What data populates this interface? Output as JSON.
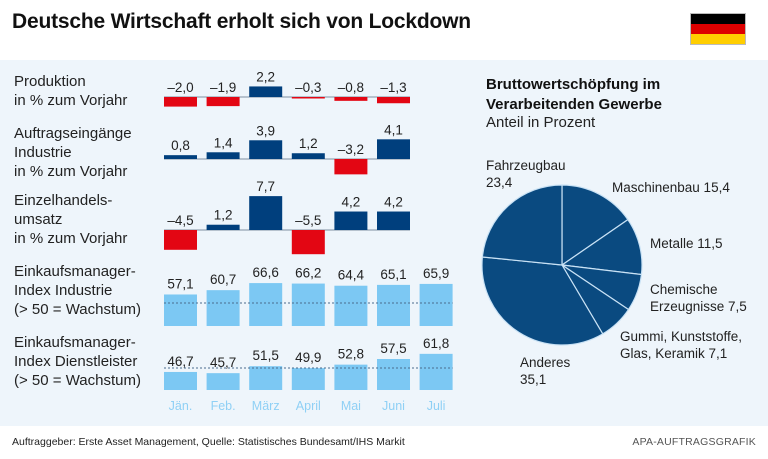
{
  "header": {
    "title": "Deutsche Wirtschaft erholt sich von Lockdown",
    "flag": {
      "name": "germany-flag",
      "colors": [
        "#000000",
        "#dd0000",
        "#ffce00"
      ]
    }
  },
  "colors": {
    "positive": "#003f7d",
    "negative": "#e30613",
    "pmi": "#7cc8f3",
    "month_label": "#8fd0f5",
    "panel_bg": "#eef5fb"
  },
  "rows": [
    {
      "label": "Produktion\nin % zum Vorjahr"
    },
    {
      "label": "Auftragseingänge\nIndustrie\nin % zum Vorjahr"
    },
    {
      "label": "Einzelhandels-\numsatz\nin % zum Vorjahr"
    },
    {
      "label": "Einkaufsmanager-\nIndex Industrie\n(> 50 = Wachstum)"
    },
    {
      "label": "Einkaufsmanager-\nIndex Dienstleister\n(> 50 = Wachstum)"
    }
  ],
  "chart_data": [
    {
      "type": "bar",
      "title": "Produktion in % zum Vorjahr",
      "categories": [
        "Jän.",
        "Feb.",
        "März",
        "April",
        "Mai",
        "Juni"
      ],
      "values": [
        -2.0,
        -1.9,
        2.2,
        -0.3,
        -0.8,
        -1.3
      ],
      "labels": [
        "–2,0",
        "–1,9",
        "2,2",
        "–0,3",
        "–0,8",
        "–1,3"
      ]
    },
    {
      "type": "bar",
      "title": "Auftragseingänge Industrie in % zum Vorjahr",
      "categories": [
        "Jän.",
        "Feb.",
        "März",
        "April",
        "Mai",
        "Juni"
      ],
      "values": [
        0.8,
        1.4,
        3.9,
        1.2,
        -3.2,
        4.1
      ],
      "labels": [
        "0,8",
        "1,4",
        "3,9",
        "1,2",
        "–3,2",
        "4,1"
      ]
    },
    {
      "type": "bar",
      "title": "Einzelhandelsumsatz in % zum Vorjahr",
      "categories": [
        "Jän.",
        "Feb.",
        "März",
        "April",
        "Mai",
        "Juni"
      ],
      "values": [
        -4.5,
        1.2,
        7.7,
        -5.5,
        4.2,
        4.2
      ],
      "labels": [
        "–4,5",
        "1,2",
        "7,7",
        "–5,5",
        "4,2",
        "4,2"
      ]
    },
    {
      "type": "bar",
      "title": "Einkaufsmanager-Index Industrie (> 50 = Wachstum)",
      "categories": [
        "Jän.",
        "Feb.",
        "März",
        "April",
        "Mai",
        "Juni",
        "Juli"
      ],
      "values": [
        57.1,
        60.7,
        66.6,
        66.2,
        64.4,
        65.1,
        65.9
      ],
      "labels": [
        "57,1",
        "60,7",
        "66,6",
        "66,2",
        "64,4",
        "65,1",
        "65,9"
      ],
      "reference_line": 50
    },
    {
      "type": "bar",
      "title": "Einkaufsmanager-Index Dienstleister (> 50 = Wachstum)",
      "categories": [
        "Jän.",
        "Feb.",
        "März",
        "April",
        "Mai",
        "Juni",
        "Juli"
      ],
      "values": [
        46.7,
        45.7,
        51.5,
        49.9,
        52.8,
        57.5,
        61.8
      ],
      "labels": [
        "46,7",
        "45,7",
        "51,5",
        "49,9",
        "52,8",
        "57,5",
        "61,8"
      ],
      "reference_line": 50
    },
    {
      "type": "pie",
      "title": "Bruttowertschöpfung im Verarbeitenden Gewerbe",
      "subtitle": "Anteil in Prozent",
      "slices": [
        {
          "name": "Maschinenbau",
          "value": 15.4,
          "label": "Maschinenbau 15,4"
        },
        {
          "name": "Metalle",
          "value": 11.5,
          "label": "Metalle 11,5"
        },
        {
          "name": "Chemische Erzeugnisse",
          "value": 7.5,
          "label": "Chemische\nErzeugnisse 7,5"
        },
        {
          "name": "Gummi, Kunststoffe, Glas, Keramik",
          "value": 7.1,
          "label": "Gummi, Kunststoffe,\nGlas, Keramik 7,1"
        },
        {
          "name": "Anderes",
          "value": 35.1,
          "label": "Anderes\n35,1"
        },
        {
          "name": "Fahrzeugbau",
          "value": 23.4,
          "label": "Fahrzeugbau\n23,4"
        }
      ],
      "color": "#0a4a80"
    }
  ],
  "months": [
    "Jän.",
    "Feb.",
    "März",
    "April",
    "Mai",
    "Juni",
    "Juli"
  ],
  "footer": {
    "source": "Auftraggeber: Erste Asset Management, Quelle: Statistisches Bundesamt/IHS Markit",
    "credit": "APA-AUFTRAGSGRAFIK"
  }
}
